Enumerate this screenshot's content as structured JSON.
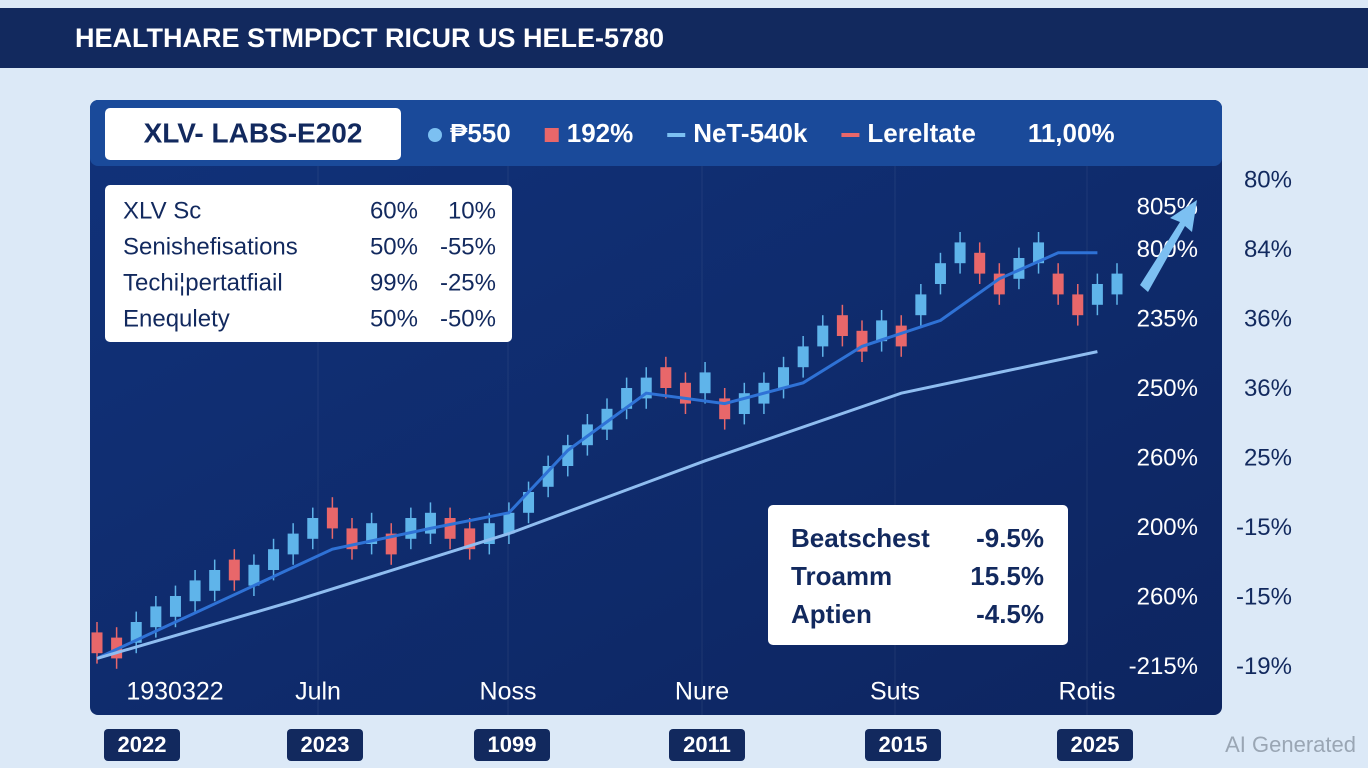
{
  "chart_data": {
    "type": "candlestick",
    "title": "HEALTHARE STMPDCT RICUR US HELE-5780",
    "badge": "XLV- LABS-E202",
    "legend": [
      {
        "label": "₱550",
        "marker": "dot",
        "color": "#7cc0f2"
      },
      {
        "label": "192%",
        "marker": "square",
        "color": "#e8676a"
      },
      {
        "label": "NeT-540k",
        "marker": "line",
        "color": "#7cc0f2"
      },
      {
        "label": "Lereltate",
        "marker": "line",
        "color": "#e8676a"
      },
      {
        "label": "11,00%",
        "marker": "none",
        "color": "#ffffff"
      }
    ],
    "info_table": [
      [
        "XLV Sc",
        "60%",
        "10%"
      ],
      [
        "Senishefisations",
        "50%",
        "-55%"
      ],
      [
        "Techi¦pertatfiail",
        "99%",
        "-25%"
      ],
      [
        "Enequlety",
        "50%",
        "-50%"
      ]
    ],
    "stats_table": [
      [
        "Beatschest",
        "-9.5%"
      ],
      [
        "Troamm",
        "15.5%"
      ],
      [
        "Aptien",
        "-4.5%"
      ]
    ],
    "inner_axis_labels": [
      "805%",
      "800%",
      "235%",
      "250%",
      "260%",
      "200%",
      "260%",
      "-215%"
    ],
    "outer_axis_labels": [
      "80%",
      "84%",
      "36%",
      "36%",
      "25%",
      "-15%",
      "-15%",
      "-19%"
    ],
    "x_labels": [
      "1930322",
      "Juln",
      "Noss",
      "Nure",
      "Suts",
      "Rotis"
    ],
    "year_badges": [
      "2022",
      "2023",
      "1099",
      "2011",
      "2015",
      "2025"
    ],
    "watermark": "AI Generated",
    "ylim": [
      0,
      100
    ],
    "xlim": [
      0,
      52
    ],
    "up_color": "#5fb4ea",
    "down_color": "#e8676a",
    "candles": {
      "open": [
        13,
        12,
        11,
        14,
        16,
        19,
        21,
        27,
        22,
        25,
        28,
        31,
        37,
        33,
        30,
        32,
        31,
        32,
        35,
        33,
        30,
        32,
        36,
        41,
        45,
        49,
        52,
        56,
        58,
        64,
        61,
        59,
        58,
        55,
        57,
        60,
        64,
        68,
        74,
        71,
        69,
        72,
        74,
        80,
        84,
        86,
        82,
        81,
        84,
        82,
        78,
        76,
        78
      ],
      "high": [
        15,
        14,
        17,
        20,
        22,
        25,
        27,
        29,
        28,
        31,
        34,
        37,
        39,
        35,
        36,
        34,
        37,
        38,
        37,
        35,
        36,
        38,
        42,
        47,
        51,
        55,
        58,
        62,
        64,
        66,
        63,
        65,
        60,
        61,
        63,
        66,
        70,
        74,
        76,
        73,
        75,
        74,
        80,
        86,
        90,
        88,
        84,
        87,
        90,
        84,
        80,
        82,
        84
      ],
      "low": [
        7,
        6,
        9,
        12,
        14,
        17,
        19,
        21,
        20,
        23,
        26,
        29,
        31,
        27,
        28,
        26,
        29,
        30,
        29,
        27,
        28,
        30,
        34,
        39,
        43,
        47,
        50,
        54,
        56,
        58,
        55,
        57,
        52,
        53,
        55,
        58,
        62,
        66,
        68,
        65,
        67,
        66,
        72,
        78,
        82,
        80,
        76,
        79,
        82,
        76,
        72,
        74,
        76
      ],
      "close": [
        9,
        8,
        15,
        18,
        20,
        23,
        25,
        23,
        26,
        29,
        32,
        35,
        33,
        29,
        34,
        28,
        35,
        36,
        31,
        29,
        34,
        36,
        40,
        45,
        49,
        53,
        56,
        60,
        62,
        60,
        57,
        63,
        54,
        59,
        61,
        64,
        68,
        72,
        70,
        67,
        73,
        68,
        78,
        84,
        88,
        82,
        78,
        85,
        88,
        78,
        74,
        80,
        82
      ]
    },
    "lines": [
      {
        "color": "#2f72d6",
        "x": [
          0,
          12,
          17,
          21,
          24,
          28,
          32,
          36,
          39,
          43,
          46,
          49,
          51
        ],
        "values": [
          8,
          29,
          33,
          36,
          48,
          59,
          57,
          61,
          68,
          73,
          81,
          86,
          86
        ]
      },
      {
        "color": "#8fbdf0",
        "x": [
          0,
          10,
          21,
          31,
          41,
          46,
          51
        ],
        "values": [
          8,
          19,
          32,
          46,
          59,
          63,
          67
        ]
      }
    ]
  }
}
